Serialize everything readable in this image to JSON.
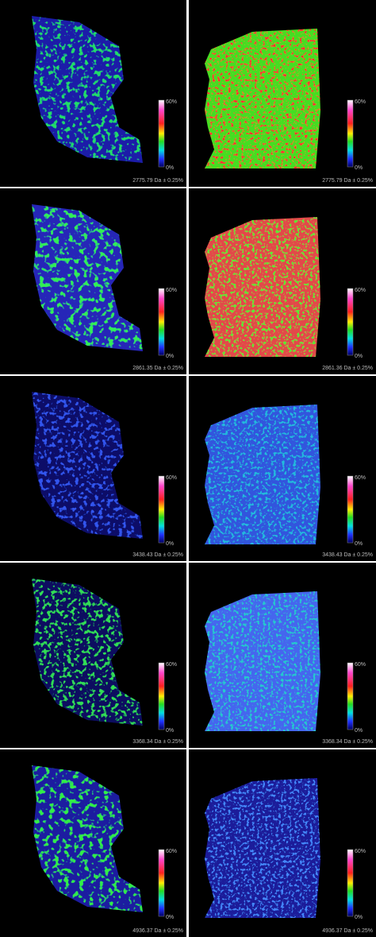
{
  "panels": [
    {
      "left": {
        "label": "2775.79 Da ± 0.25%",
        "scale_max": "60%",
        "scale_min": "0%"
      },
      "right": {
        "label": "2775.79 Da ± 0.25%",
        "scale_max": "60%",
        "scale_min": "0%"
      }
    },
    {
      "left": {
        "label": "2861.35 Da ± 0.25%",
        "scale_max": "60%",
        "scale_min": "0%"
      },
      "right": {
        "label": "2861.36 Da ± 0.25%",
        "scale_max": "60%",
        "scale_min": "0%"
      }
    },
    {
      "left": {
        "label": "3438.43 Da ± 0.25%",
        "scale_max": "60%",
        "scale_min": "0%"
      },
      "right": {
        "label": "3438.43 Da ± 0.25%",
        "scale_max": "60%",
        "scale_min": "0%"
      }
    },
    {
      "left": {
        "label": "3368.34 Da ± 0.25%",
        "scale_max": "60%",
        "scale_min": "0%"
      },
      "right": {
        "label": "3368.34 Da ± 0.25%",
        "scale_max": "60%",
        "scale_min": "0%"
      }
    },
    {
      "left": {
        "label": "4936.37 Da ± 0.25%",
        "scale_max": "60%",
        "scale_min": "0%"
      },
      "right": {
        "label": "4936.37 Da ± 0.25%",
        "scale_max": "60%",
        "scale_min": "0%"
      }
    }
  ]
}
